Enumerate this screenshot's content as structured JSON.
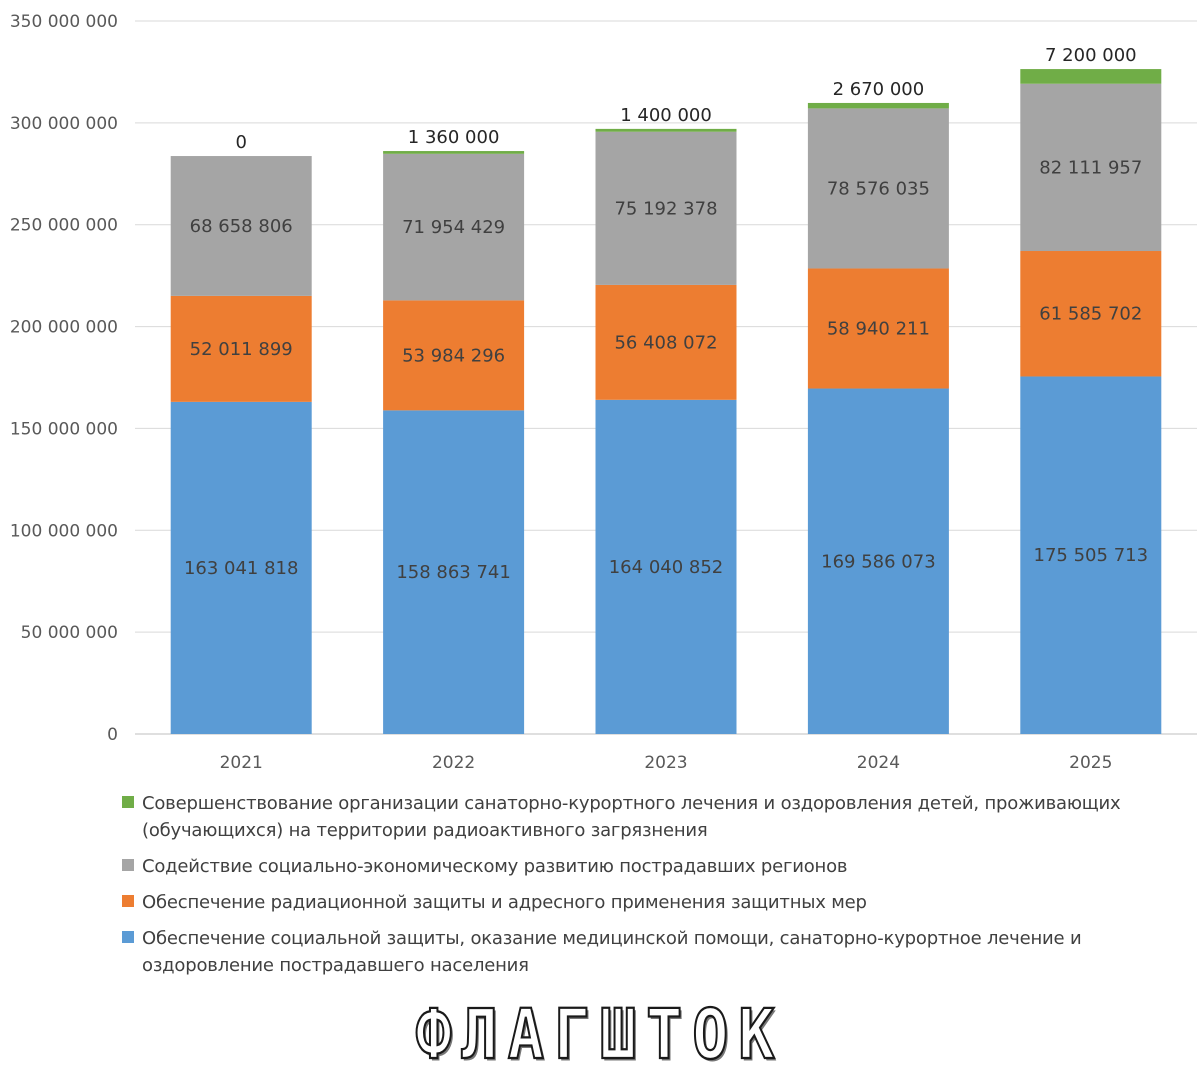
{
  "chart_data": {
    "type": "bar",
    "stacked": true,
    "categories": [
      "2021",
      "2022",
      "2023",
      "2024",
      "2025"
    ],
    "ylim": [
      0,
      350000000
    ],
    "ytick_step": 50000000,
    "ytick_labels": [
      "0",
      "50 000 000",
      "100 000 000",
      "150 000 000",
      "200 000 000",
      "250 000 000",
      "300 000 000",
      "350 000 000"
    ],
    "grid": true,
    "legend_position": "bottom",
    "series": [
      {
        "name": "Обеспечение социальной защиты, оказание медицинской помощи, санаторно-курортное лечение и оздоровление пострадавшего населения",
        "color": "#5b9bd5",
        "values": [
          163041818,
          158863741,
          164040852,
          169586073,
          175505713
        ],
        "labels": [
          "163 041 818",
          "158 863 741",
          "164 040 852",
          "169 586 073",
          "175 505 713"
        ]
      },
      {
        "name": "Обеспечение радиационной защиты и адресного применения защитных мер",
        "color": "#ed7d31",
        "values": [
          52011899,
          53984296,
          56408072,
          58940211,
          61585702
        ],
        "labels": [
          "52 011 899",
          "53 984 296",
          "56 408 072",
          "58 940 211",
          "61 585 702"
        ]
      },
      {
        "name": "Содействие социально-экономическому развитию пострадавших регионов",
        "color": "#a5a5a5",
        "values": [
          68658806,
          71954429,
          75192378,
          78576035,
          82111957
        ],
        "labels": [
          "68 658 806",
          "71 954 429",
          "75 192 378",
          "78 576 035",
          "82 111 957"
        ]
      },
      {
        "name": "Совершенствование организации санаторно-курортного лечения и оздоровления детей, проживающих (обучающихся) на территории радиоактивного загрязнения",
        "color": "#70ad47",
        "values": [
          0,
          1360000,
          1400000,
          2670000,
          7200000
        ],
        "labels": [
          "0",
          "1 360 000",
          "1 400 000",
          "2 670 000",
          "7 200 000"
        ]
      }
    ],
    "legend": [
      "Совершенствование организации санаторно-курортного лечения и оздоровления детей, проживающих (обучающихся) на территории радиоактивного загрязнения",
      "Содействие социально-экономическому развитию пострадавших регионов",
      "Обеспечение радиационной защиты и адресного применения защитных мер",
      "Обеспечение социальной защиты, оказание медицинской помощи, санаторно-курортное лечение и оздоровление пострадавшего населения"
    ],
    "legend_colors": [
      "#70ad47",
      "#a5a5a5",
      "#ed7d31",
      "#5b9bd5"
    ]
  },
  "watermark": {
    "text": "ФЛАГШТОК"
  }
}
